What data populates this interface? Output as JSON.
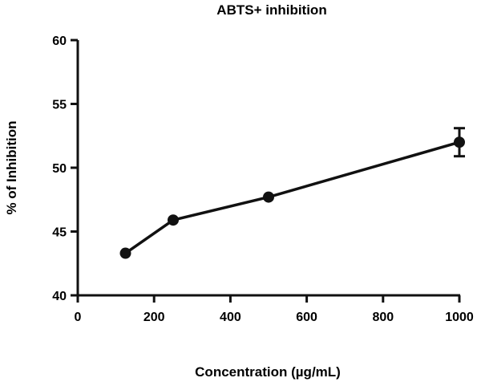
{
  "chart_data": {
    "type": "line",
    "title": "ABTS+ inhibition",
    "xlabel": "Concentration (µg/mL)",
    "ylabel": "% of Inhibition",
    "xlim": [
      0,
      1000
    ],
    "ylim": [
      40,
      60
    ],
    "xticks": [
      0,
      200,
      400,
      600,
      800,
      1000
    ],
    "yticks": [
      40,
      45,
      50,
      55,
      60
    ],
    "grid": false,
    "series": [
      {
        "x": [
          125,
          250,
          500,
          1000
        ],
        "y": [
          43.3,
          45.9,
          47.7,
          52.0
        ],
        "error": [
          0,
          0,
          0,
          1.1
        ],
        "marker": "circle",
        "color": "#111111"
      }
    ]
  }
}
